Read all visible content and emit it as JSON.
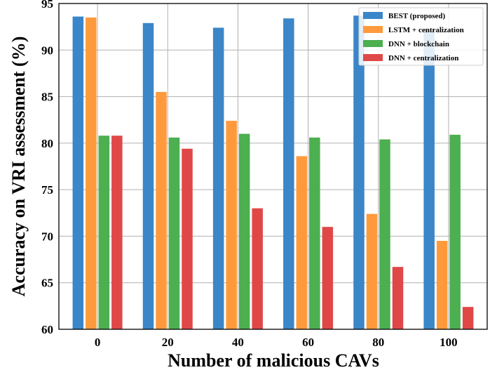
{
  "chart_data": {
    "type": "bar",
    "xlabel": "Number of malicious CAVs",
    "ylabel": "Accuracy on VRI assessment (%)",
    "categories": [
      "0",
      "20",
      "40",
      "60",
      "80",
      "100"
    ],
    "ylim": [
      60,
      95
    ],
    "yticks": [
      60,
      65,
      70,
      75,
      80,
      85,
      90,
      95
    ],
    "grid": true,
    "legend_position": "top-right",
    "series": [
      {
        "name": "BEST (proposed)",
        "color": "#3a86c8",
        "values": [
          93.6,
          92.9,
          92.4,
          93.4,
          93.7,
          92.2
        ]
      },
      {
        "name": "LSTM + centralization",
        "color": "#ff9a3c",
        "values": [
          93.5,
          85.5,
          82.4,
          78.6,
          72.4,
          69.5
        ]
      },
      {
        "name": "DNN + blockchain",
        "color": "#4caf50",
        "values": [
          80.8,
          80.6,
          81.0,
          80.6,
          80.4,
          80.9
        ]
      },
      {
        "name": "DNN + centralization",
        "color": "#e04848",
        "values": [
          80.8,
          79.4,
          73.0,
          71.0,
          66.7,
          62.4
        ]
      }
    ]
  }
}
